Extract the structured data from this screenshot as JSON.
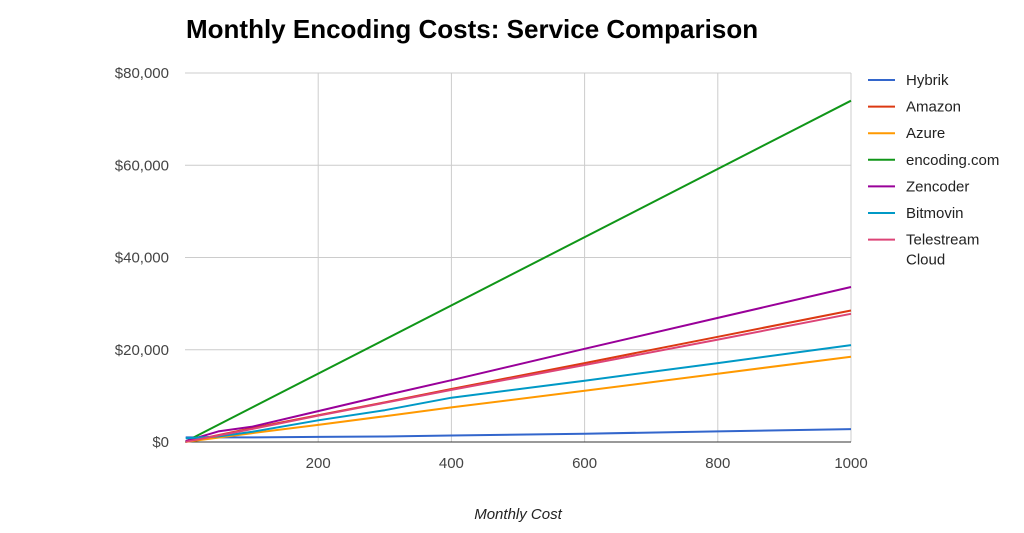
{
  "chart_data": {
    "type": "line",
    "title": "Monthly Encoding Costs: Service Comparison",
    "xlabel": "Monthly Cost",
    "ylabel": "",
    "xlim": [
      0,
      1000
    ],
    "ylim": [
      0,
      80000
    ],
    "x_ticks": [
      200,
      400,
      600,
      800,
      1000
    ],
    "y_ticks": [
      0,
      20000,
      40000,
      60000,
      80000
    ],
    "y_tick_labels": [
      "$0",
      "$20,000",
      "$40,000",
      "$60,000",
      "$80,000"
    ],
    "grid": true,
    "legend_position": "right",
    "series": [
      {
        "name": "Hybrik",
        "color": "#3366cc",
        "points": [
          [
            1,
            1000
          ],
          [
            50,
            1000
          ],
          [
            100,
            1000
          ],
          [
            200,
            1100
          ],
          [
            300,
            1200
          ],
          [
            400,
            1400
          ],
          [
            600,
            1800
          ],
          [
            800,
            2300
          ],
          [
            1000,
            2800
          ]
        ]
      },
      {
        "name": "Amazon",
        "color": "#dc3912",
        "points": [
          [
            1,
            50
          ],
          [
            50,
            1500
          ],
          [
            100,
            3000
          ],
          [
            200,
            5800
          ],
          [
            300,
            8600
          ],
          [
            400,
            11500
          ],
          [
            600,
            17100
          ],
          [
            800,
            22800
          ],
          [
            1000,
            28500
          ]
        ]
      },
      {
        "name": "Azure",
        "color": "#ff9900",
        "points": [
          [
            1,
            20
          ],
          [
            50,
            950
          ],
          [
            100,
            1900
          ],
          [
            200,
            3700
          ],
          [
            300,
            5600
          ],
          [
            400,
            7500
          ],
          [
            600,
            11100
          ],
          [
            800,
            14800
          ],
          [
            1000,
            18500
          ]
        ]
      },
      {
        "name": "encoding.com",
        "color": "#109618",
        "points": [
          [
            1,
            100
          ],
          [
            1000,
            74000
          ]
        ]
      },
      {
        "name": "Zencoder",
        "color": "#990099",
        "points": [
          [
            1,
            200
          ],
          [
            50,
            2300
          ],
          [
            100,
            3300
          ],
          [
            200,
            6700
          ],
          [
            300,
            10100
          ],
          [
            400,
            13400
          ],
          [
            600,
            20200
          ],
          [
            800,
            26900
          ],
          [
            1000,
            33600
          ]
        ]
      },
      {
        "name": "Bitmovin",
        "color": "#0099c6",
        "points": [
          [
            1,
            800
          ],
          [
            50,
            1200
          ],
          [
            100,
            2200
          ],
          [
            200,
            4700
          ],
          [
            300,
            6900
          ],
          [
            400,
            9600
          ],
          [
            600,
            13300
          ],
          [
            800,
            17100
          ],
          [
            1000,
            21000
          ]
        ]
      },
      {
        "name": "Telestream Cloud",
        "color": "#dd4477",
        "points": [
          [
            1,
            50
          ],
          [
            50,
            1400
          ],
          [
            100,
            2800
          ],
          [
            200,
            5700
          ],
          [
            300,
            8500
          ],
          [
            400,
            11300
          ],
          [
            600,
            16700
          ],
          [
            800,
            22200
          ],
          [
            1000,
            27800
          ]
        ]
      }
    ]
  }
}
